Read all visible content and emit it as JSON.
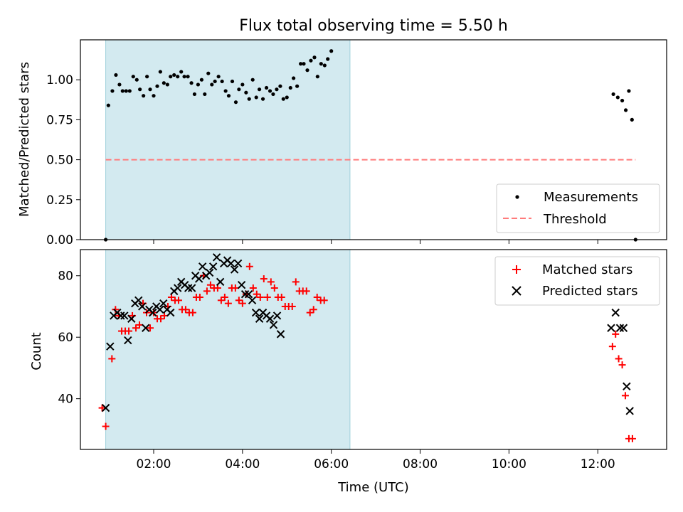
{
  "chart_data": [
    {
      "type": "scatter",
      "title": "Flux total observing time = 5.50 h",
      "xlabel": "",
      "ylabel": "Matched/Predicted stars",
      "xlim": [
        0.35,
        13.55
      ],
      "ylim": [
        0.0,
        1.25
      ],
      "yticks": [
        0.0,
        0.25,
        0.5,
        0.75,
        1.0
      ],
      "ytick_labels": [
        "0.00",
        "0.25",
        "0.50",
        "0.75",
        "1.00"
      ],
      "xticks": [
        2,
        4,
        6,
        8,
        10,
        12
      ],
      "xtick_labels": [],
      "shaded_span": {
        "x_start": 0.92,
        "x_end": 6.42,
        "color": "#d3eaf0"
      },
      "threshold_line": {
        "y": 0.5,
        "x_start": 0.92,
        "x_end": 12.85,
        "label": "Threshold",
        "color": "#ff7b7b"
      },
      "legend": {
        "position": "lower-right",
        "entries": [
          "Measurements",
          "Threshold"
        ]
      },
      "series": [
        {
          "name": "Measurements",
          "color": "#000000",
          "points": [
            [
              0.92,
              0.0
            ],
            [
              0.98,
              0.84
            ],
            [
              1.07,
              0.93
            ],
            [
              1.15,
              1.03
            ],
            [
              1.23,
              0.97
            ],
            [
              1.3,
              0.93
            ],
            [
              1.38,
              0.93
            ],
            [
              1.46,
              0.93
            ],
            [
              1.54,
              1.02
            ],
            [
              1.62,
              1.0
            ],
            [
              1.69,
              0.94
            ],
            [
              1.77,
              0.9
            ],
            [
              1.85,
              1.02
            ],
            [
              1.92,
              0.94
            ],
            [
              2.0,
              0.9
            ],
            [
              2.08,
              0.96
            ],
            [
              2.15,
              1.05
            ],
            [
              2.23,
              0.98
            ],
            [
              2.31,
              0.97
            ],
            [
              2.38,
              1.02
            ],
            [
              2.46,
              1.03
            ],
            [
              2.54,
              1.02
            ],
            [
              2.62,
              1.05
            ],
            [
              2.69,
              1.02
            ],
            [
              2.77,
              1.02
            ],
            [
              2.85,
              0.98
            ],
            [
              2.92,
              0.91
            ],
            [
              3.0,
              0.97
            ],
            [
              3.08,
              1.0
            ],
            [
              3.15,
              0.91
            ],
            [
              3.23,
              1.04
            ],
            [
              3.31,
              0.97
            ],
            [
              3.38,
              0.99
            ],
            [
              3.46,
              1.02
            ],
            [
              3.54,
              0.99
            ],
            [
              3.62,
              0.93
            ],
            [
              3.69,
              0.9
            ],
            [
              3.77,
              0.99
            ],
            [
              3.85,
              0.86
            ],
            [
              3.92,
              0.94
            ],
            [
              4.0,
              0.97
            ],
            [
              4.08,
              0.92
            ],
            [
              4.15,
              0.88
            ],
            [
              4.23,
              1.0
            ],
            [
              4.31,
              0.89
            ],
            [
              4.38,
              0.94
            ],
            [
              4.46,
              0.88
            ],
            [
              4.54,
              0.95
            ],
            [
              4.62,
              0.93
            ],
            [
              4.69,
              0.91
            ],
            [
              4.77,
              0.94
            ],
            [
              4.85,
              0.96
            ],
            [
              4.92,
              0.88
            ],
            [
              5.0,
              0.89
            ],
            [
              5.08,
              0.95
            ],
            [
              5.15,
              1.01
            ],
            [
              5.23,
              0.96
            ],
            [
              5.31,
              1.1
            ],
            [
              5.38,
              1.1
            ],
            [
              5.46,
              1.06
            ],
            [
              5.54,
              1.12
            ],
            [
              5.62,
              1.14
            ],
            [
              5.69,
              1.02
            ],
            [
              5.77,
              1.1
            ],
            [
              5.85,
              1.09
            ],
            [
              5.92,
              1.13
            ],
            [
              6.0,
              1.18
            ],
            [
              12.35,
              0.91
            ],
            [
              12.45,
              0.89
            ],
            [
              12.55,
              0.87
            ],
            [
              12.63,
              0.81
            ],
            [
              12.7,
              0.93
            ],
            [
              12.77,
              0.75
            ],
            [
              12.85,
              0.0
            ]
          ]
        }
      ]
    },
    {
      "type": "scatter",
      "title": "",
      "xlabel": "Time (UTC)",
      "ylabel": "Count",
      "xlim": [
        0.35,
        13.55
      ],
      "ylim": [
        23.5,
        88.5
      ],
      "yticks": [
        40,
        60,
        80
      ],
      "ytick_labels": [
        "40",
        "60",
        "80"
      ],
      "xticks": [
        2,
        4,
        6,
        8,
        10,
        12
      ],
      "xtick_labels": [
        "02:00",
        "04:00",
        "06:00",
        "08:00",
        "10:00",
        "12:00"
      ],
      "shaded_span": {
        "x_start": 0.92,
        "x_end": 6.42,
        "color": "#d3eaf0"
      },
      "legend": {
        "position": "top-right",
        "entries": [
          "Matched stars",
          "Predicted stars"
        ]
      },
      "series": [
        {
          "name": "Matched stars",
          "marker": "plus",
          "color": "#ff0000",
          "points": [
            [
              0.84,
              37
            ],
            [
              0.92,
              31
            ],
            [
              1.06,
              53
            ],
            [
              1.14,
              69
            ],
            [
              1.21,
              67
            ],
            [
              1.28,
              62
            ],
            [
              1.36,
              62
            ],
            [
              1.44,
              62
            ],
            [
              1.52,
              67
            ],
            [
              1.6,
              63
            ],
            [
              1.68,
              64
            ],
            [
              1.76,
              71
            ],
            [
              1.84,
              68
            ],
            [
              1.92,
              63
            ],
            [
              2.0,
              68
            ],
            [
              2.08,
              66
            ],
            [
              2.16,
              66
            ],
            [
              2.24,
              67
            ],
            [
              2.32,
              70
            ],
            [
              2.4,
              73
            ],
            [
              2.48,
              72
            ],
            [
              2.56,
              72
            ],
            [
              2.64,
              69
            ],
            [
              2.72,
              69
            ],
            [
              2.8,
              68
            ],
            [
              2.88,
              68
            ],
            [
              2.96,
              73
            ],
            [
              3.04,
              73
            ],
            [
              3.12,
              80
            ],
            [
              3.2,
              75
            ],
            [
              3.28,
              77
            ],
            [
              3.36,
              76
            ],
            [
              3.44,
              76
            ],
            [
              3.52,
              72
            ],
            [
              3.6,
              73
            ],
            [
              3.68,
              71
            ],
            [
              3.76,
              76
            ],
            [
              3.84,
              76
            ],
            [
              3.92,
              72
            ],
            [
              4.0,
              71
            ],
            [
              4.08,
              74
            ],
            [
              4.16,
              83
            ],
            [
              4.24,
              76
            ],
            [
              4.32,
              74
            ],
            [
              4.4,
              73
            ],
            [
              4.48,
              79
            ],
            [
              4.56,
              73
            ],
            [
              4.64,
              78
            ],
            [
              4.72,
              76
            ],
            [
              4.8,
              73
            ],
            [
              4.88,
              73
            ],
            [
              4.96,
              70
            ],
            [
              5.04,
              70
            ],
            [
              5.12,
              70
            ],
            [
              5.2,
              78
            ],
            [
              5.28,
              75
            ],
            [
              5.36,
              75
            ],
            [
              5.44,
              75
            ],
            [
              5.52,
              68
            ],
            [
              5.6,
              69
            ],
            [
              5.68,
              73
            ],
            [
              5.76,
              72
            ],
            [
              5.84,
              72
            ],
            [
              12.33,
              57
            ],
            [
              12.4,
              61
            ],
            [
              12.47,
              53
            ],
            [
              12.55,
              51
            ],
            [
              12.62,
              41
            ],
            [
              12.7,
              27
            ],
            [
              12.78,
              27
            ]
          ]
        },
        {
          "name": "Predicted stars",
          "marker": "x",
          "color": "#000000",
          "points": [
            [
              0.92,
              37
            ],
            [
              1.02,
              57
            ],
            [
              1.1,
              67
            ],
            [
              1.18,
              68
            ],
            [
              1.26,
              67
            ],
            [
              1.34,
              67
            ],
            [
              1.42,
              59
            ],
            [
              1.5,
              66
            ],
            [
              1.58,
              71
            ],
            [
              1.66,
              72
            ],
            [
              1.74,
              70
            ],
            [
              1.82,
              63
            ],
            [
              1.9,
              69
            ],
            [
              1.98,
              68
            ],
            [
              2.06,
              70
            ],
            [
              2.14,
              69
            ],
            [
              2.22,
              71
            ],
            [
              2.3,
              69
            ],
            [
              2.38,
              68
            ],
            [
              2.46,
              75
            ],
            [
              2.54,
              76
            ],
            [
              2.62,
              78
            ],
            [
              2.7,
              77
            ],
            [
              2.78,
              76
            ],
            [
              2.86,
              76
            ],
            [
              2.94,
              80
            ],
            [
              3.02,
              79
            ],
            [
              3.1,
              83
            ],
            [
              3.18,
              80
            ],
            [
              3.26,
              81
            ],
            [
              3.34,
              83
            ],
            [
              3.42,
              86
            ],
            [
              3.5,
              78
            ],
            [
              3.58,
              84
            ],
            [
              3.66,
              85
            ],
            [
              3.74,
              84
            ],
            [
              3.82,
              82
            ],
            [
              3.9,
              84
            ],
            [
              3.98,
              77
            ],
            [
              4.06,
              74
            ],
            [
              4.14,
              74
            ],
            [
              4.22,
              72
            ],
            [
              4.3,
              68
            ],
            [
              4.38,
              66
            ],
            [
              4.46,
              68
            ],
            [
              4.54,
              67
            ],
            [
              4.62,
              66
            ],
            [
              4.7,
              64
            ],
            [
              4.78,
              67
            ],
            [
              4.86,
              61
            ],
            [
              12.3,
              63
            ],
            [
              12.4,
              68
            ],
            [
              12.5,
              63
            ],
            [
              12.58,
              63
            ],
            [
              12.65,
              44
            ],
            [
              12.72,
              36
            ]
          ]
        }
      ]
    }
  ]
}
